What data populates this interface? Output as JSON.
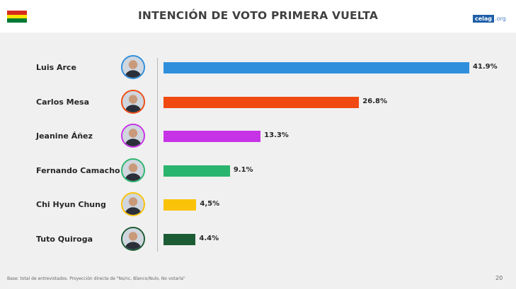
{
  "header": {
    "title": "INTENCIÓN DE VOTO PRIMERA VUELTA",
    "logo_main": "celag",
    "logo_suffix": ".org"
  },
  "flag_colors": [
    "#d52b1e",
    "#f9e300",
    "#007934"
  ],
  "footer": {
    "note": "Base: total de entrevistados. Proyección directa de \"Ns/nc, Blanco/Nulo, No votaría\"",
    "page": "20"
  },
  "chart_data": {
    "type": "bar",
    "orientation": "horizontal",
    "categories": [
      "Luis Arce",
      "Carlos Mesa",
      "Jeanine Áñez",
      "Fernando Camacho",
      "Chi Hyun Chung",
      "Tuto Quiroga"
    ],
    "values": [
      41.9,
      26.8,
      13.3,
      9.1,
      4.5,
      4.4
    ],
    "value_labels": [
      "41.9%",
      "26.8%",
      "13.3%",
      "9.1%",
      "4,5%",
      "4.4%"
    ],
    "colors": [
      "#2f8fdd",
      "#f04a12",
      "#c633e6",
      "#2ab56e",
      "#fbc20a",
      "#1b5c35"
    ],
    "avatar_icons": [
      "luis-arce-avatar-icon",
      "carlos-mesa-avatar-icon",
      "jeanine-anez-avatar-icon",
      "fernando-camacho-avatar-icon",
      "chi-hyun-chung-avatar-icon",
      "tuto-quiroga-avatar-icon"
    ],
    "title": "INTENCIÓN DE VOTO PRIMERA VUELTA",
    "xlim": [
      0,
      42
    ],
    "grid": false
  }
}
